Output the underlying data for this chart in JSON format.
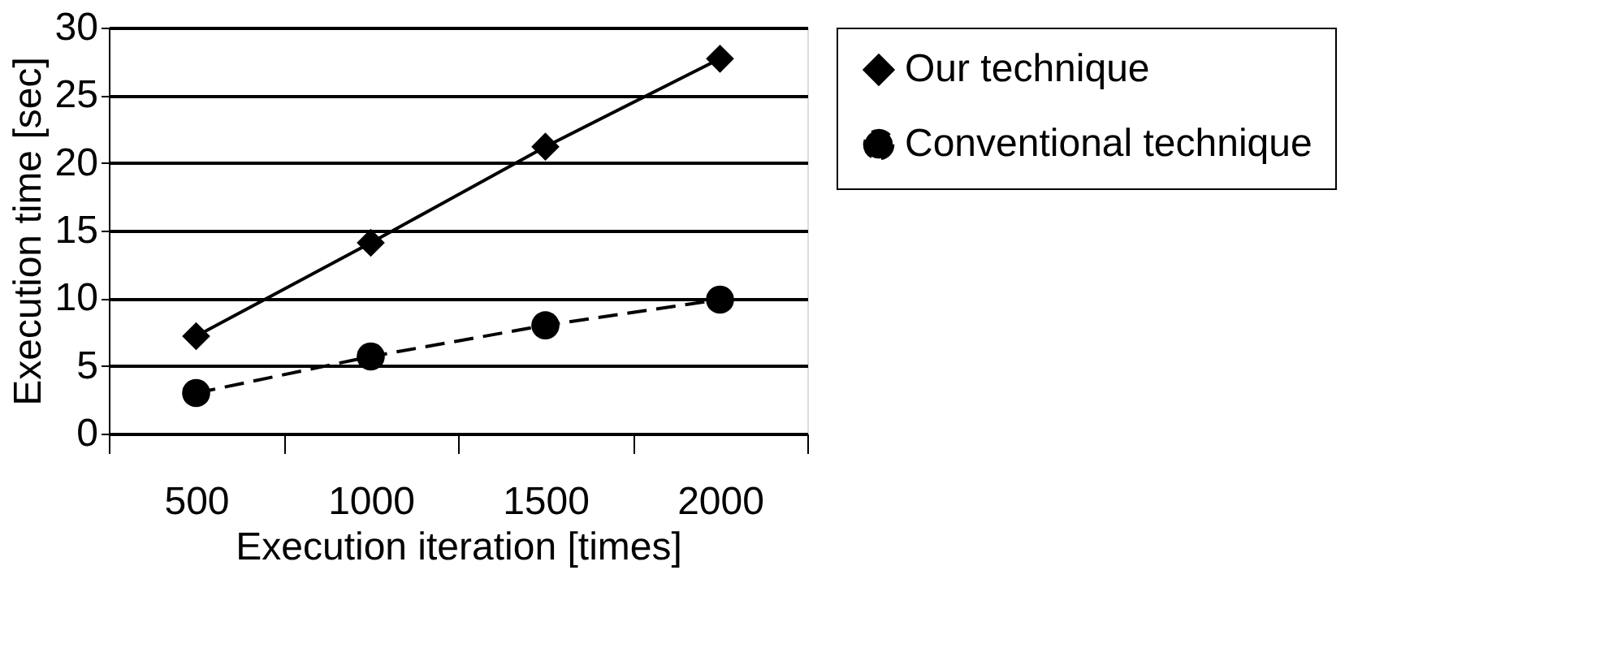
{
  "chart_data": {
    "type": "line",
    "xlabel": "Execution iteration [times]",
    "ylabel": "Execution time [sec]",
    "categories": [
      "500",
      "1000",
      "1500",
      "2000"
    ],
    "series": [
      {
        "name": "Our technique",
        "color": "#000000",
        "values": [
          7.2,
          14.1,
          21.2,
          27.7
        ],
        "marker": "diamond",
        "line_style": "solid"
      },
      {
        "name": "Conventional technique",
        "color": "#000000",
        "values": [
          3.0,
          5.7,
          8.0,
          9.9
        ],
        "marker": "circle",
        "line_style": "dashed"
      }
    ],
    "ylim": [
      0,
      30
    ],
    "yticks": [
      0,
      5,
      10,
      15,
      20,
      25,
      30
    ],
    "grid": "y",
    "legend": "right"
  }
}
